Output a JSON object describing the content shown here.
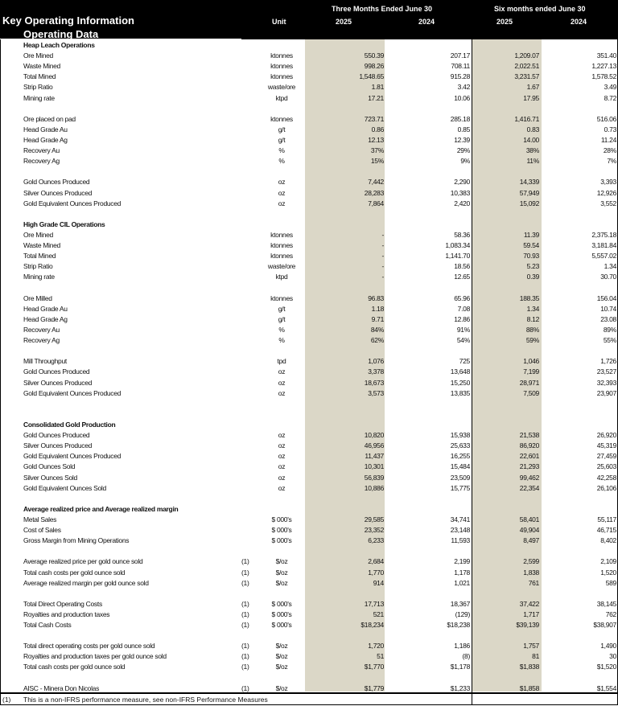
{
  "header": {
    "title": "Key Operating Information",
    "subtitle": "Operating Data",
    "unit_label": "Unit",
    "group1": "Three Months Ended June 30",
    "group2": "Six months ended June 30",
    "years": [
      "2025",
      "2024",
      "2025",
      "2024"
    ]
  },
  "colors": {
    "shaded_column": "#dbd7c7",
    "header_bg": "#000000"
  },
  "rows": [
    {
      "section": "Heap Leach Operations"
    },
    {
      "label": "Ore Mined",
      "unit": "ktonnes",
      "values": [
        "550.39",
        "207.17",
        "1,209.07",
        "351.40"
      ]
    },
    {
      "label": "Waste Mined",
      "unit": "ktonnes",
      "values": [
        "998.26",
        "708.11",
        "2,022.51",
        "1,227.13"
      ]
    },
    {
      "label": "Total Mined",
      "unit": "ktonnes",
      "values": [
        "1,548.65",
        "915.28",
        "3,231.57",
        "1,578.52"
      ]
    },
    {
      "label": "Strip Ratio",
      "unit": "waste/ore",
      "values": [
        "1.81",
        "3.42",
        "1.67",
        "3.49"
      ]
    },
    {
      "label": "Mining rate",
      "unit": "ktpd",
      "values": [
        "17.21",
        "10.06",
        "17.95",
        "8.72"
      ]
    },
    {},
    {
      "label": "Ore placed on pad",
      "unit": "ktonnes",
      "values": [
        "723.71",
        "285.18",
        "1,416.71",
        "516.06"
      ]
    },
    {
      "label": "Head Grade Au",
      "unit": "g/t",
      "values": [
        "0.86",
        "0.85",
        "0.83",
        "0.73"
      ]
    },
    {
      "label": "Head Grade Ag",
      "unit": "g/t",
      "values": [
        "12.13",
        "12.39",
        "14.00",
        "11.24"
      ]
    },
    {
      "label": "Recovery Au",
      "unit": "%",
      "values": [
        "37%",
        "29%",
        "38%",
        "28%"
      ]
    },
    {
      "label": "Recovery Ag",
      "unit": "%",
      "values": [
        "15%",
        "9%",
        "11%",
        "7%"
      ]
    },
    {},
    {
      "label": "Gold Ounces Produced",
      "unit": "oz",
      "values": [
        "7,442",
        "2,290",
        "14,339",
        "3,393"
      ]
    },
    {
      "label": "Silver Ounces Produced",
      "unit": "oz",
      "values": [
        "28,283",
        "10,383",
        "57,949",
        "12,926"
      ]
    },
    {
      "label": "Gold Equivalent Ounces Produced",
      "unit": "oz",
      "values": [
        "7,864",
        "2,420",
        "15,092",
        "3,552"
      ]
    },
    {},
    {
      "section": "High Grade CIL Operations"
    },
    {
      "label": "Ore Mined",
      "unit": "ktonnes",
      "values": [
        "-",
        "58.36",
        "11.39",
        "2,375.18"
      ]
    },
    {
      "label": "Waste Mined",
      "unit": "ktonnes",
      "values": [
        "-",
        "1,083.34",
        "59.54",
        "3,181.84"
      ]
    },
    {
      "label": "Total Mined",
      "unit": "ktonnes",
      "values": [
        "-",
        "1,141.70",
        "70.93",
        "5,557.02"
      ]
    },
    {
      "label": "Strip Ratio",
      "unit": "waste/ore",
      "values": [
        "-",
        "18.56",
        "5.23",
        "1.34"
      ]
    },
    {
      "label": "Mining rate",
      "unit": "ktpd",
      "values": [
        "-",
        "12.65",
        "0.39",
        "30.70"
      ]
    },
    {},
    {
      "label": "Ore Milled",
      "unit": "ktonnes",
      "values": [
        "96.83",
        "65.96",
        "188.35",
        "156.04"
      ]
    },
    {
      "label": "Head Grade Au",
      "unit": "g/t",
      "values": [
        "1.18",
        "7.08",
        "1.34",
        "10.74"
      ]
    },
    {
      "label": "Head Grade Ag",
      "unit": "g/t",
      "values": [
        "9.71",
        "12.86",
        "8.12",
        "23.08"
      ]
    },
    {
      "label": "Recovery Au",
      "unit": "%",
      "values": [
        "84%",
        "91%",
        "88%",
        "89%"
      ]
    },
    {
      "label": "Recovery Ag",
      "unit": "%",
      "values": [
        "62%",
        "54%",
        "59%",
        "55%"
      ]
    },
    {},
    {
      "label": "Mill Throughput",
      "unit": "tpd",
      "values": [
        "1,076",
        "725",
        "1,046",
        "1,726"
      ]
    },
    {
      "label": "Gold Ounces Produced",
      "unit": "oz",
      "values": [
        "3,378",
        "13,648",
        "7,199",
        "23,527"
      ]
    },
    {
      "label": "Silver Ounces Produced",
      "unit": "oz",
      "values": [
        "18,673",
        "15,250",
        "28,971",
        "32,393"
      ]
    },
    {
      "label": "Gold Equivalent Ounces Produced",
      "unit": "oz",
      "values": [
        "3,573",
        "13,835",
        "7,509",
        "23,907"
      ]
    },
    {},
    {},
    {
      "section": "Consolidated Gold Production"
    },
    {
      "label": "Gold Ounces Produced",
      "unit": "oz",
      "values": [
        "10,820",
        "15,938",
        "21,538",
        "26,920"
      ]
    },
    {
      "label": "Silver Ounces Produced",
      "unit": "oz",
      "values": [
        "46,956",
        "25,633",
        "86,920",
        "45,319"
      ]
    },
    {
      "label": "Gold Equivalent Ounces Produced",
      "unit": "oz",
      "values": [
        "11,437",
        "16,255",
        "22,601",
        "27,459"
      ]
    },
    {
      "label": "Gold Ounces Sold",
      "unit": "oz",
      "values": [
        "10,301",
        "15,484",
        "21,293",
        "25,603"
      ]
    },
    {
      "label": "Silver Ounces Sold",
      "unit": "oz",
      "values": [
        "56,839",
        "23,509",
        "99,462",
        "42,258"
      ]
    },
    {
      "label": "Gold Equivalent Ounces Sold",
      "unit": "oz",
      "values": [
        "10,886",
        "15,775",
        "22,354",
        "26,106"
      ]
    },
    {},
    {
      "section": "Average realized price and Average realized margin"
    },
    {
      "label": "Metal Sales",
      "unit": "$ 000's",
      "values": [
        "29,585",
        "34,741",
        "58,401",
        "55,117"
      ]
    },
    {
      "label": "Cost of Sales",
      "unit": "$ 000's",
      "values": [
        "23,352",
        "23,148",
        "49,904",
        "46,715"
      ]
    },
    {
      "label": "Gross Margin from Mining Operations",
      "unit": "$ 000's",
      "values": [
        "6,233",
        "11,593",
        "8,497",
        "8,402"
      ]
    },
    {},
    {
      "label": "Average realized price per gold ounce sold",
      "note": "(1)",
      "unit": "$/oz",
      "values": [
        "2,684",
        "2,199",
        "2,599",
        "2,109"
      ]
    },
    {
      "label": "Total cash costs per gold ounce sold",
      "note": "(1)",
      "unit": "$/oz",
      "values": [
        "1,770",
        "1,178",
        "1,838",
        "1,520"
      ]
    },
    {
      "label": "Average realized margin per gold ounce sold",
      "note": "(1)",
      "unit": "$/oz",
      "values": [
        "914",
        "1,021",
        "761",
        "589"
      ]
    },
    {},
    {
      "label": "Total Direct Operating Costs",
      "note": "(1)",
      "unit": "$ 000's",
      "values": [
        "17,713",
        "18,367",
        "37,422",
        "38,145"
      ]
    },
    {
      "label": "Royalties and production taxes",
      "note": "(1)",
      "unit": "$ 000's",
      "values": [
        "521",
        "(129)",
        "1,717",
        "762"
      ]
    },
    {
      "label": "Total Cash Costs",
      "note": "(1)",
      "unit": "$ 000's",
      "values": [
        "$18,234",
        "$18,238",
        "$39,139",
        "$38,907"
      ]
    },
    {},
    {
      "label": "Total direct operating costs per gold ounce sold",
      "note": "(1)",
      "unit": "$/oz",
      "values": [
        "1,720",
        "1,186",
        "1,757",
        "1,490"
      ]
    },
    {
      "label": "Royalties and production taxes per gold ounce sold",
      "note": "(1)",
      "unit": "$/oz",
      "values": [
        "51",
        "(8)",
        "81",
        "30"
      ]
    },
    {
      "label": "Total cash costs per gold ounce sold",
      "note": "(1)",
      "unit": "$/oz",
      "values": [
        "$1,770",
        "$1,178",
        "$1,838",
        "$1,520"
      ]
    },
    {},
    {
      "label": "AISC - Minera Don Nicolas",
      "note": "(1)",
      "unit": "$/oz",
      "values": [
        "$1,779",
        "$1,233",
        "$1,858",
        "$1,554"
      ]
    }
  ],
  "footnote": {
    "marker": "(1)",
    "text": "This is a non-IFRS performance measure, see non-IFRS Performance Measures"
  }
}
